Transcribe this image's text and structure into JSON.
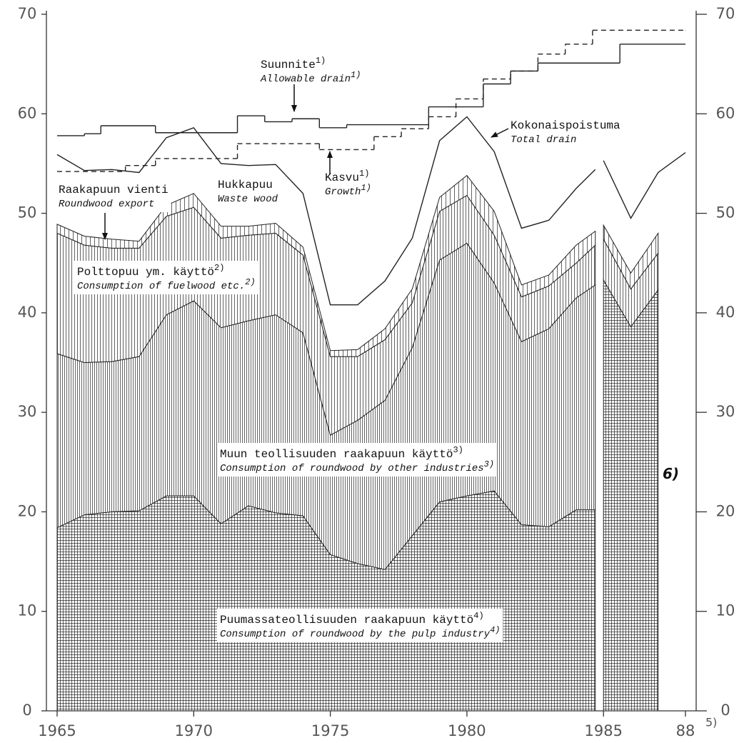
{
  "chart_data": {
    "type": "area",
    "xlim": [
      1965,
      1988
    ],
    "ylim": [
      0,
      70
    ],
    "xticks": [
      1965,
      1970,
      1975,
      1980,
      1985,
      {
        "value": 1988,
        "label": "88"
      }
    ],
    "x_tick_note": "5)",
    "yticks": [
      0,
      10,
      20,
      30,
      40,
      50,
      60,
      70
    ],
    "grid": false,
    "x": [
      1965,
      1966,
      1967,
      1968,
      1969,
      1970,
      1971,
      1972,
      1973,
      1974,
      1975,
      1976,
      1977,
      1978,
      1979,
      1980,
      1981,
      1982,
      1983,
      1984,
      1984.7,
      1984.9,
      1985,
      1986,
      1987,
      1988
    ],
    "series": [
      {
        "name": "Puumassateollisuuden raakapuun käyttö",
        "name_en": "Consumption of roundwood by the pulp industry",
        "note": "4)",
        "type": "stacked",
        "hatch": "crosshatch",
        "color": "#222222",
        "values": [
          18.4,
          19.7,
          20.0,
          20.1,
          21.6,
          21.6,
          18.8,
          20.6,
          19.9,
          19.6,
          15.7,
          14.8,
          14.2,
          17.6,
          21.0,
          21.6,
          22.1,
          18.7,
          18.5,
          20.2,
          20.2,
          null,
          43.3,
          38.6,
          42.3,
          null
        ]
      },
      {
        "name": "Muun teollisuuden raakapuun käyttö",
        "name_en": "Consumption of roundwood by other industries",
        "note": "3)",
        "type": "stacked",
        "hatch": "vertical-dense",
        "color": "#222222",
        "values": [
          17.5,
          15.3,
          15.1,
          15.5,
          18.2,
          19.6,
          19.7,
          18.6,
          19.9,
          18.4,
          12.0,
          14.4,
          17.0,
          18.9,
          24.3,
          25.4,
          20.9,
          18.4,
          19.9,
          21.3,
          22.6,
          null,
          null,
          null,
          null,
          null
        ]
      },
      {
        "name": "Polttopuu ym. käyttö",
        "name_en": "Consumption of fuelwood etc.",
        "note": "2)",
        "type": "stacked",
        "hatch": "vertical",
        "color": "#222222",
        "values": [
          12.1,
          11.8,
          11.4,
          10.9,
          9.9,
          9.4,
          9.0,
          8.6,
          8.2,
          7.8,
          7.9,
          6.4,
          6.1,
          4.5,
          4.9,
          4.8,
          4.8,
          4.5,
          4.3,
          3.5,
          4.0,
          null,
          4.1,
          3.8,
          3.7,
          null
        ]
      },
      {
        "name": "Raakapuun vienti",
        "name_en": "Roundwood export",
        "type": "stacked",
        "hatch": "vertical-wide",
        "color": "#222222",
        "values": [
          0.9,
          0.9,
          0.9,
          0.7,
          1.1,
          1.4,
          1.2,
          0.9,
          1.0,
          0.8,
          0.6,
          0.7,
          1.1,
          1.4,
          1.4,
          2.0,
          2.4,
          1.2,
          1.1,
          1.8,
          1.4,
          null,
          1.4,
          1.6,
          2.0,
          null
        ]
      },
      {
        "name": "Kokonaispoistuma",
        "name_en": "Total drain",
        "type": "line",
        "color": "#222222",
        "values": [
          55.9,
          54.3,
          54.4,
          54.1,
          57.6,
          58.6,
          55.0,
          54.8,
          54.9,
          52.0,
          40.8,
          40.8,
          43.2,
          47.5,
          57.3,
          59.7,
          56.2,
          48.5,
          49.3,
          52.5,
          54.4,
          null,
          55.3,
          49.5,
          54.1,
          56.1
        ]
      },
      {
        "name": "Suunnite",
        "name_en": "Allowable drain",
        "note": "1)",
        "type": "step",
        "dashed": false,
        "color": "#222222",
        "x": [
          1965,
          1966,
          1966.6,
          1968.6,
          1971.6,
          1972.6,
          1973.6,
          1974.6,
          1975.6,
          1978.6,
          1980.6,
          1981.6,
          1982.6,
          1985.6,
          1988
        ],
        "values": [
          57.8,
          58.0,
          58.8,
          58.1,
          59.8,
          59.2,
          59.5,
          58.6,
          58.9,
          60.7,
          63.0,
          64.3,
          65.1,
          67.0,
          67.0
        ]
      },
      {
        "name": "Kasvu",
        "name_en": "Growth",
        "note": "1)",
        "type": "step",
        "dashed": true,
        "color": "#222222",
        "x": [
          1965,
          1967.5,
          1968.6,
          1971.6,
          1974.6,
          1976.6,
          1977.6,
          1978.6,
          1979.6,
          1980.6,
          1981.6,
          1982.6,
          1983.6,
          1984.6,
          1988
        ],
        "values": [
          54.2,
          54.8,
          55.5,
          57.0,
          56.4,
          57.7,
          58.5,
          59.7,
          61.5,
          63.5,
          64.3,
          66.0,
          67.0,
          68.4,
          68.4
        ]
      }
    ],
    "annotations": [
      {
        "text": "Hukkapuu",
        "text_en": "Waste wood"
      },
      {
        "text": "6)"
      }
    ]
  }
}
